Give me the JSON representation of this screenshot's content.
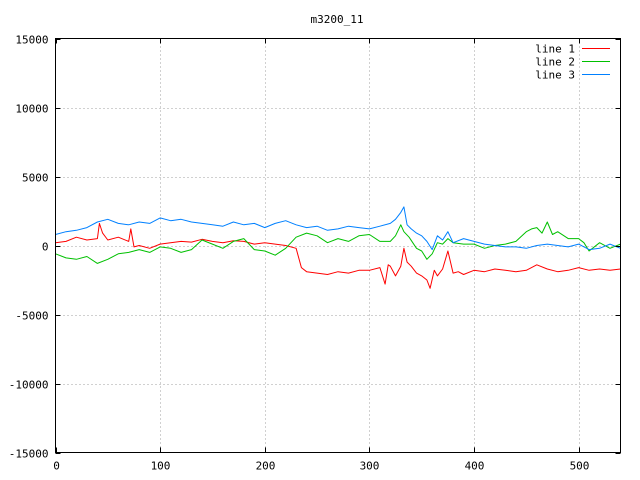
{
  "chart_data": {
    "type": "line",
    "title": "m3200_11",
    "xlabel": "",
    "ylabel": "",
    "xlim": [
      0,
      540
    ],
    "ylim": [
      -15000,
      15000
    ],
    "x_ticks": [
      0,
      100,
      200,
      300,
      400,
      500
    ],
    "y_ticks": [
      -15000,
      -10000,
      -5000,
      0,
      5000,
      10000,
      15000
    ],
    "grid": true,
    "legend_position": "top-right",
    "series": [
      {
        "name": "line 1",
        "color": "#ff0000",
        "x": [
          0,
          10,
          20,
          30,
          40,
          42,
          45,
          50,
          60,
          70,
          72,
          75,
          80,
          90,
          100,
          110,
          120,
          130,
          140,
          150,
          160,
          170,
          180,
          190,
          200,
          210,
          220,
          230,
          235,
          240,
          250,
          260,
          270,
          280,
          290,
          300,
          310,
          315,
          318,
          320,
          325,
          330,
          333,
          336,
          340,
          345,
          350,
          355,
          358,
          362,
          365,
          370,
          375,
          380,
          385,
          390,
          400,
          410,
          420,
          430,
          440,
          450,
          460,
          470,
          480,
          490,
          500,
          510,
          520,
          530,
          540
        ],
        "y": [
          200,
          300,
          600,
          400,
          500,
          1600,
          900,
          400,
          600,
          300,
          1200,
          -100,
          0,
          -200,
          100,
          200,
          300,
          250,
          450,
          300,
          200,
          350,
          300,
          100,
          200,
          100,
          0,
          -200,
          -1600,
          -1900,
          -2000,
          -2100,
          -1900,
          -2000,
          -1800,
          -1800,
          -1600,
          -2800,
          -1400,
          -1500,
          -2200,
          -1500,
          -200,
          -1200,
          -1500,
          -2000,
          -2200,
          -2500,
          -3100,
          -1800,
          -2200,
          -1700,
          -400,
          -2000,
          -1900,
          -2100,
          -1800,
          -1900,
          -1700,
          -1800,
          -1900,
          -1800,
          -1400,
          -1700,
          -1900,
          -1800,
          -1600,
          -1800,
          -1700,
          -1800,
          -1700
        ]
      },
      {
        "name": "line 2",
        "color": "#00c000",
        "x": [
          0,
          10,
          20,
          30,
          40,
          50,
          60,
          70,
          80,
          90,
          100,
          110,
          120,
          130,
          140,
          150,
          160,
          170,
          180,
          190,
          200,
          210,
          220,
          230,
          240,
          250,
          260,
          270,
          280,
          290,
          300,
          310,
          320,
          325,
          330,
          333,
          338,
          345,
          350,
          355,
          360,
          365,
          370,
          375,
          380,
          390,
          400,
          410,
          420,
          430,
          440,
          450,
          455,
          460,
          465,
          470,
          475,
          480,
          490,
          500,
          505,
          510,
          520,
          530,
          540
        ],
        "y": [
          -600,
          -900,
          -1000,
          -800,
          -1300,
          -1000,
          -600,
          -500,
          -300,
          -500,
          -100,
          -200,
          -500,
          -300,
          400,
          100,
          -200,
          300,
          500,
          -300,
          -400,
          -700,
          -200,
          600,
          900,
          700,
          200,
          500,
          300,
          700,
          800,
          300,
          300,
          700,
          1500,
          1000,
          600,
          -200,
          -400,
          -1000,
          -600,
          200,
          100,
          500,
          200,
          100,
          100,
          -200,
          0,
          100,
          300,
          1000,
          1200,
          1300,
          900,
          1700,
          800,
          1000,
          500,
          500,
          200,
          -400,
          200,
          -200,
          100
        ]
      },
      {
        "name": "line 3",
        "color": "#0080ff",
        "x": [
          0,
          10,
          20,
          30,
          40,
          50,
          60,
          70,
          80,
          90,
          100,
          110,
          120,
          130,
          140,
          150,
          160,
          170,
          180,
          190,
          200,
          210,
          220,
          230,
          240,
          250,
          260,
          270,
          280,
          290,
          300,
          310,
          320,
          325,
          330,
          333,
          336,
          340,
          345,
          350,
          355,
          360,
          365,
          370,
          375,
          380,
          390,
          400,
          410,
          420,
          430,
          440,
          450,
          460,
          470,
          480,
          490,
          500,
          510,
          520,
          530,
          540
        ],
        "y": [
          800,
          1000,
          1100,
          1300,
          1700,
          1900,
          1600,
          1500,
          1700,
          1600,
          2000,
          1800,
          1900,
          1700,
          1600,
          1500,
          1400,
          1700,
          1500,
          1600,
          1300,
          1600,
          1800,
          1500,
          1300,
          1400,
          1100,
          1200,
          1400,
          1300,
          1200,
          1400,
          1600,
          1900,
          2400,
          2800,
          1500,
          1200,
          900,
          700,
          300,
          -300,
          700,
          400,
          1000,
          200,
          500,
          300,
          100,
          0,
          -100,
          -100,
          -200,
          0,
          100,
          0,
          -100,
          100,
          -300,
          -200,
          100,
          -200
        ]
      }
    ]
  }
}
